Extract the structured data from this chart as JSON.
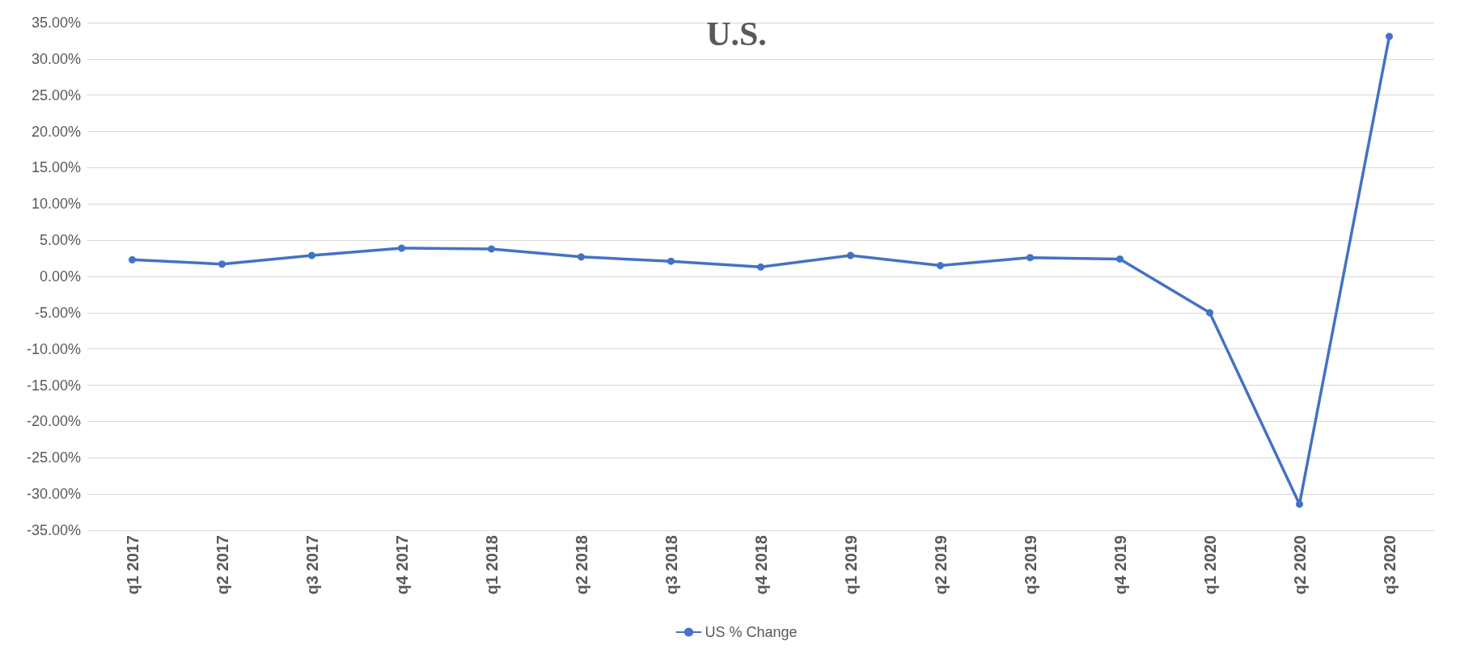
{
  "chart_data": {
    "type": "line",
    "title": "U.S.",
    "categories": [
      "q1 2017",
      "q2 2017",
      "q3 2017",
      "q4 2017",
      "q1 2018",
      "q2 2018",
      "q3 2018",
      "q4 2018",
      "q1 2019",
      "q2 2019",
      "q3 2019",
      "q4 2019",
      "q1 2020",
      "q2 2020",
      "q3 2020"
    ],
    "series": [
      {
        "name": "US % Change",
        "color": "#4472c4",
        "values": [
          2.3,
          1.7,
          2.9,
          3.9,
          3.8,
          2.7,
          2.1,
          1.3,
          2.9,
          1.5,
          2.6,
          2.4,
          -5.0,
          -31.4,
          33.1
        ]
      }
    ],
    "ylim": [
      -35,
      35
    ],
    "yticks": [
      {
        "value": -35,
        "label": "-35.00%"
      },
      {
        "value": -30,
        "label": "-30.00%"
      },
      {
        "value": -25,
        "label": "-25.00%"
      },
      {
        "value": -20,
        "label": "-20.00%"
      },
      {
        "value": -15,
        "label": "-15.00%"
      },
      {
        "value": -10,
        "label": "-10.00%"
      },
      {
        "value": -5,
        "label": "-5.00%"
      },
      {
        "value": 0,
        "label": "0.00%"
      },
      {
        "value": 5,
        "label": "5.00%"
      },
      {
        "value": 10,
        "label": "10.00%"
      },
      {
        "value": 15,
        "label": "15.00%"
      },
      {
        "value": 20,
        "label": "20.00%"
      },
      {
        "value": 25,
        "label": "25.00%"
      },
      {
        "value": 30,
        "label": "30.00%"
      },
      {
        "value": 35,
        "label": "35.00%"
      }
    ],
    "grid": "y",
    "legend": "bottom",
    "marker": "circle",
    "line_style": "solid"
  }
}
